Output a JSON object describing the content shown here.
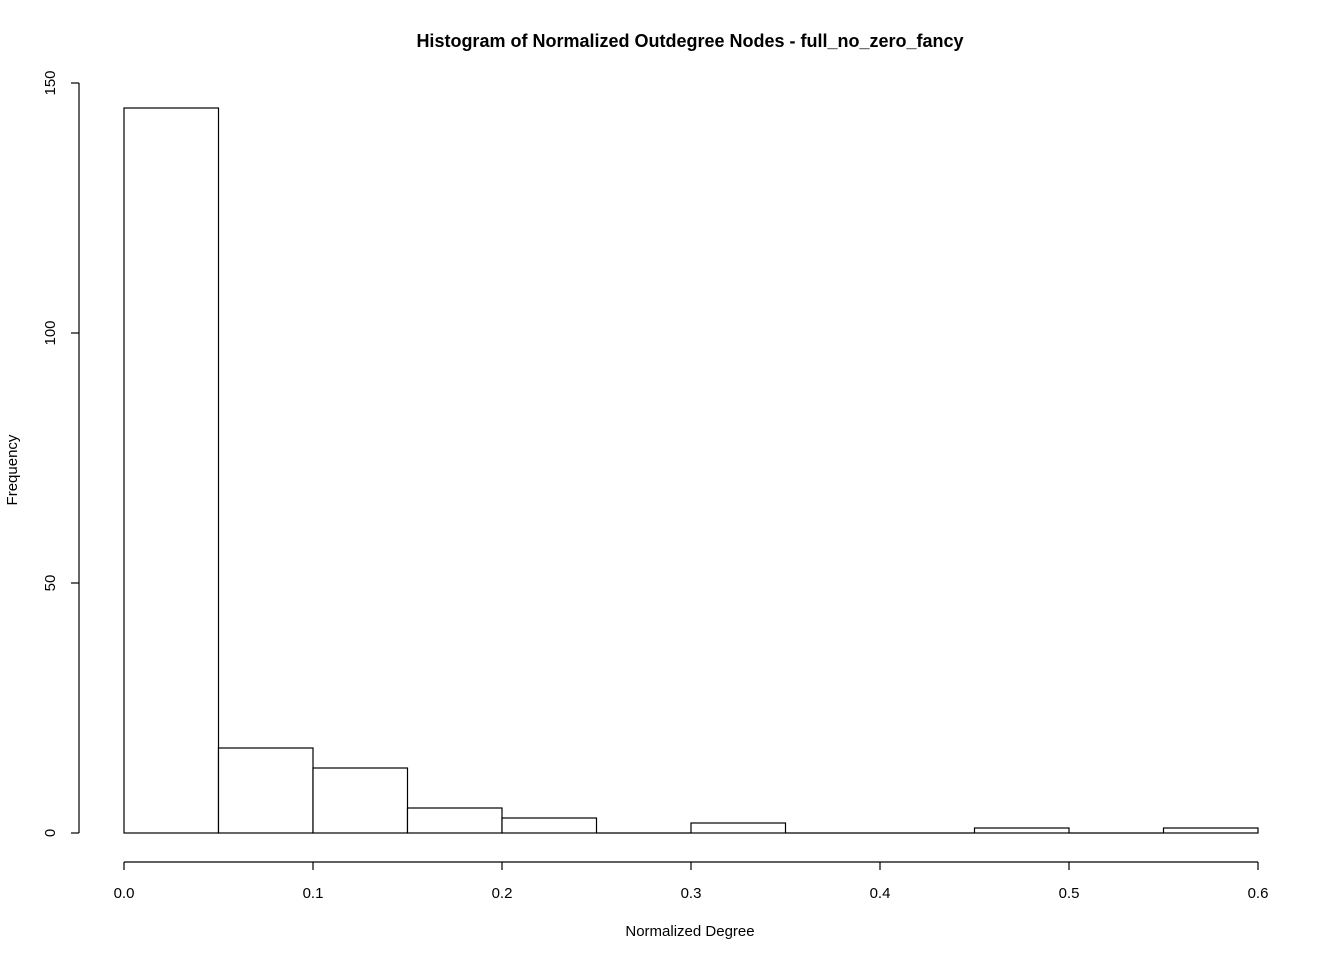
{
  "chart_data": {
    "type": "bar",
    "title": "Histogram of Normalized Outdegree Nodes - full_no_zero_fancy",
    "xlabel": "Normalized Degree",
    "ylabel": "Frequency",
    "bins": [
      {
        "x0": 0.0,
        "x1": 0.05,
        "count": 145
      },
      {
        "x0": 0.05,
        "x1": 0.1,
        "count": 17
      },
      {
        "x0": 0.1,
        "x1": 0.15,
        "count": 13
      },
      {
        "x0": 0.15,
        "x1": 0.2,
        "count": 5
      },
      {
        "x0": 0.2,
        "x1": 0.25,
        "count": 3
      },
      {
        "x0": 0.25,
        "x1": 0.3,
        "count": 0
      },
      {
        "x0": 0.3,
        "x1": 0.35,
        "count": 2
      },
      {
        "x0": 0.35,
        "x1": 0.4,
        "count": 0
      },
      {
        "x0": 0.4,
        "x1": 0.45,
        "count": 0
      },
      {
        "x0": 0.45,
        "x1": 0.5,
        "count": 1
      },
      {
        "x0": 0.5,
        "x1": 0.55,
        "count": 0
      },
      {
        "x0": 0.55,
        "x1": 0.6,
        "count": 1
      }
    ],
    "xlim": [
      0,
      0.6
    ],
    "ylim": [
      0,
      150
    ],
    "x_ticks": [
      {
        "value": 0.0,
        "label": "0.0"
      },
      {
        "value": 0.1,
        "label": "0.1"
      },
      {
        "value": 0.2,
        "label": "0.2"
      },
      {
        "value": 0.3,
        "label": "0.3"
      },
      {
        "value": 0.4,
        "label": "0.4"
      },
      {
        "value": 0.5,
        "label": "0.5"
      },
      {
        "value": 0.6,
        "label": "0.6"
      }
    ],
    "y_ticks": [
      {
        "value": 0,
        "label": "0"
      },
      {
        "value": 50,
        "label": "50"
      },
      {
        "value": 100,
        "label": "100"
      },
      {
        "value": 150,
        "label": "150"
      }
    ],
    "grid": false,
    "colors": {
      "bar_fill": "#ffffff",
      "bar_stroke": "#000000"
    }
  }
}
